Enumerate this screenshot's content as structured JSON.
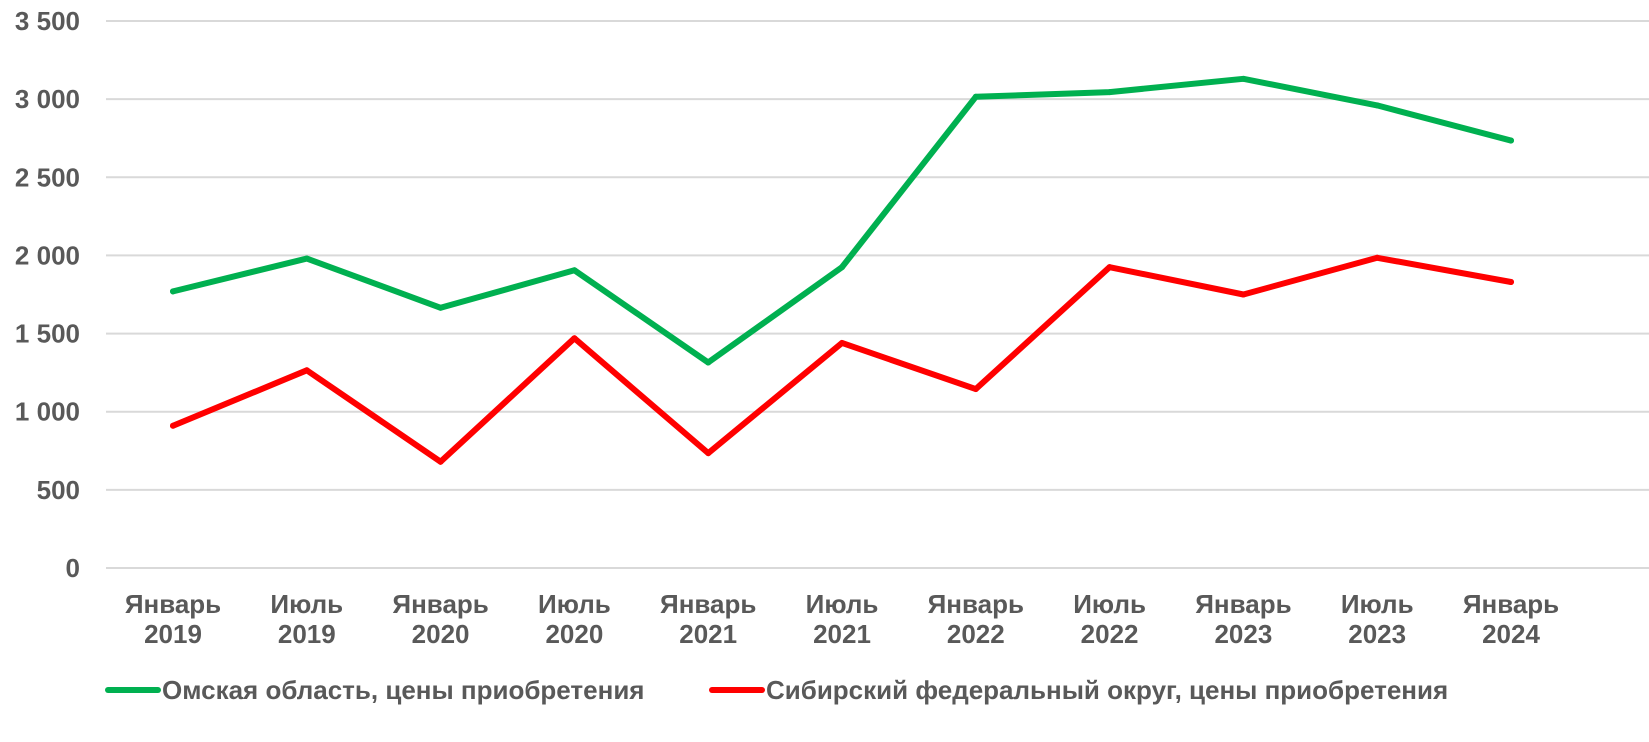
{
  "chart_data": {
    "type": "line",
    "title": "",
    "xlabel": "",
    "ylabel": "",
    "categories": [
      [
        "Январь",
        "2019"
      ],
      [
        "Июль",
        "2019"
      ],
      [
        "Январь",
        "2020"
      ],
      [
        "Июль",
        "2020"
      ],
      [
        "Январь",
        "2021"
      ],
      [
        "Июль",
        "2021"
      ],
      [
        "Январь",
        "2022"
      ],
      [
        "Июль",
        "2022"
      ],
      [
        "Январь",
        "2023"
      ],
      [
        "Июль",
        "2023"
      ],
      [
        "Январь",
        "2024"
      ]
    ],
    "ylim": [
      0,
      3500
    ],
    "yticks": [
      0,
      500,
      1000,
      1500,
      2000,
      2500,
      3000,
      3500
    ],
    "ytick_labels": [
      "0",
      "500",
      "1 000",
      "1 500",
      "2 000",
      "2 500",
      "3 000",
      "3 500"
    ],
    "grid": true,
    "legend_position": "bottom",
    "series": [
      {
        "name": "Омская область, цены приобретения",
        "color": "#00b050",
        "values": [
          1770,
          1980,
          1665,
          1905,
          1315,
          1925,
          3015,
          3045,
          3130,
          2960,
          2735
        ]
      },
      {
        "name": "Сибирский федеральный округ, цены приобретения",
        "color": "#ff0000",
        "values": [
          910,
          1265,
          680,
          1470,
          735,
          1440,
          1145,
          1925,
          1750,
          1985,
          1830
        ]
      }
    ]
  }
}
